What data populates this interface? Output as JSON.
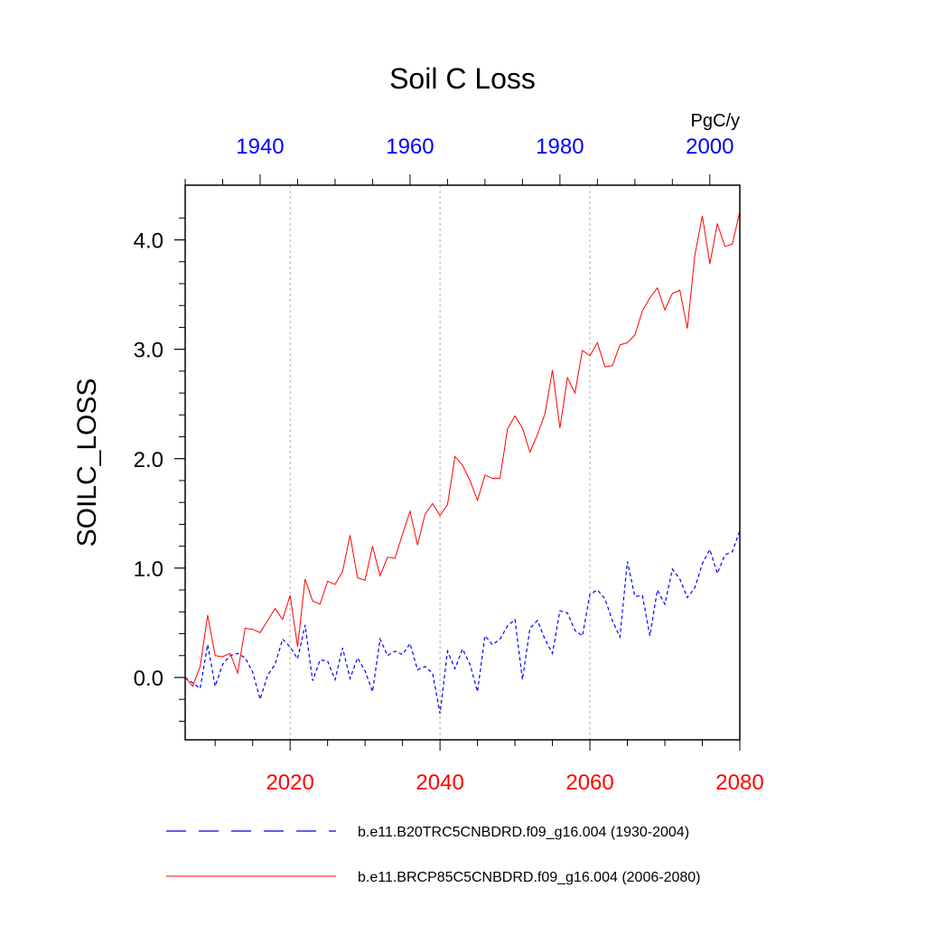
{
  "chart_data": {
    "type": "line",
    "title": "Soil C Loss",
    "ylabel": "SOILC_LOSS",
    "units": "PgC/y",
    "ylim": [
      -0.57,
      4.5
    ],
    "yticks": [
      0.0,
      1.0,
      2.0,
      3.0,
      4.0
    ],
    "ytick_labels": [
      "0.0",
      "1.0",
      "2.0",
      "3.0",
      "4.0"
    ],
    "bottom_axis": {
      "range": [
        2006,
        2080
      ],
      "ticks": [
        2020,
        2040,
        2060,
        2080
      ],
      "tick_labels": [
        "2020",
        "2040",
        "2060",
        "2080"
      ],
      "color": "#ff0000"
    },
    "top_axis": {
      "range": [
        1930,
        2004
      ],
      "ticks": [
        1940,
        1960,
        1980,
        2000
      ],
      "tick_labels": [
        "1940",
        "1960",
        "1980",
        "2000"
      ],
      "color": "#0000ff"
    },
    "vertical_gridlines_at_bottom_years": [
      2020,
      2040,
      2060
    ],
    "series": [
      {
        "name": "b.e11.B20TRC5CNBDRD.f09_g16.004 (1930-2004)",
        "color": "#0000ff",
        "style": "dashed",
        "x_start": 1930,
        "values": [
          0.0,
          -0.05,
          -0.1,
          0.3,
          -0.08,
          0.12,
          0.2,
          0.22,
          0.18,
          0.05,
          -0.2,
          0.02,
          0.12,
          0.35,
          0.28,
          0.17,
          0.48,
          -0.03,
          0.16,
          0.15,
          -0.02,
          0.27,
          -0.01,
          0.18,
          0.06,
          -0.13,
          0.35,
          0.2,
          0.24,
          0.21,
          0.31,
          0.07,
          0.1,
          0.04,
          -0.33,
          0.24,
          0.08,
          0.26,
          0.12,
          -0.13,
          0.38,
          0.3,
          0.35,
          0.47,
          0.53,
          -0.02,
          0.45,
          0.52,
          0.35,
          0.22,
          0.61,
          0.59,
          0.43,
          0.38,
          0.76,
          0.8,
          0.72,
          0.52,
          0.37,
          1.06,
          0.74,
          0.75,
          0.38,
          0.8,
          0.67,
          0.99,
          0.9,
          0.73,
          0.82,
          1.04,
          1.17,
          0.95,
          1.12,
          1.15,
          1.34
        ]
      },
      {
        "name": "b.e11.BRCP85C5CNBDRD.f09_g16.004 (2006-2080)",
        "color": "#ff0000",
        "style": "solid",
        "x_start": 2006,
        "values": [
          0.0,
          -0.08,
          0.1,
          0.57,
          0.2,
          0.19,
          0.22,
          0.04,
          0.45,
          0.44,
          0.41,
          0.52,
          0.63,
          0.53,
          0.75,
          0.28,
          0.9,
          0.7,
          0.67,
          0.88,
          0.85,
          0.97,
          1.3,
          0.91,
          0.89,
          1.2,
          0.93,
          1.1,
          1.09,
          1.31,
          1.52,
          1.21,
          1.49,
          1.59,
          1.48,
          1.58,
          2.02,
          1.94,
          1.8,
          1.62,
          1.85,
          1.82,
          1.82,
          2.27,
          2.39,
          2.28,
          2.06,
          2.22,
          2.41,
          2.81,
          2.28,
          2.74,
          2.6,
          2.99,
          2.94,
          3.06,
          2.84,
          2.85,
          3.04,
          3.06,
          3.13,
          3.35,
          3.47,
          3.56,
          3.36,
          3.51,
          3.54,
          3.19,
          3.86,
          4.22,
          3.78,
          4.15,
          3.94,
          3.96,
          4.26
        ]
      }
    ]
  }
}
